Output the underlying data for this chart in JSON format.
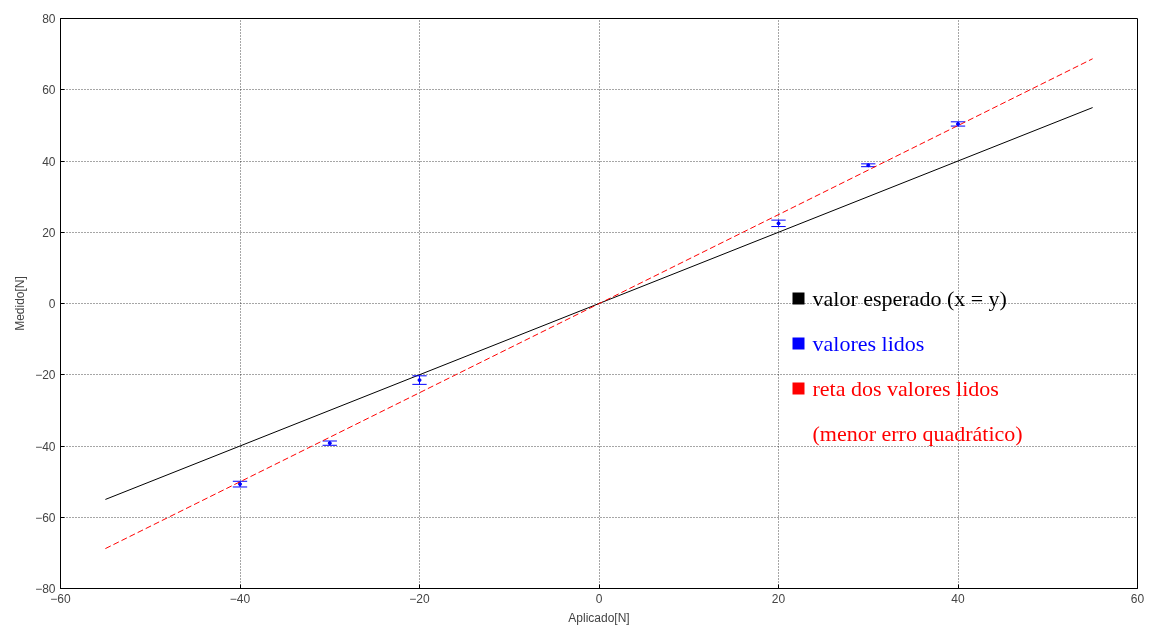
{
  "chart_data": {
    "type": "line",
    "xlabel": "Aplicado[N]",
    "ylabel": "Medido[N]",
    "xlim": [
      -60,
      60
    ],
    "ylim": [
      -80,
      80
    ],
    "xticks": [
      -60,
      -40,
      -20,
      0,
      20,
      40,
      60
    ],
    "yticks": [
      -80,
      -60,
      -40,
      -20,
      0,
      20,
      40,
      60,
      80
    ],
    "grid": true,
    "legend": "right",
    "series": [
      {
        "name": "valor esperado (x = y)",
        "color": "#000000",
        "line_style": "solid",
        "x": [
          -55,
          55
        ],
        "values": [
          -55,
          55
        ]
      },
      {
        "name": "valores lidos",
        "type": "scatter",
        "color": "#0000ff",
        "marker": "circle",
        "x": [
          -40,
          -30,
          -20,
          20,
          30,
          40
        ],
        "values": [
          -50.7,
          -39.2,
          -21.5,
          22.5,
          38.8,
          50.4
        ],
        "errors": [
          0.8,
          0.6,
          1.2,
          0.9,
          0.4,
          0.6
        ]
      },
      {
        "name": "reta dos valores lidos\n(menor erro quadrático)",
        "color": "#ff0000",
        "line_style": "dashed",
        "x": [
          -55,
          55
        ],
        "values": [
          -68.8,
          68.7
        ]
      }
    ]
  }
}
